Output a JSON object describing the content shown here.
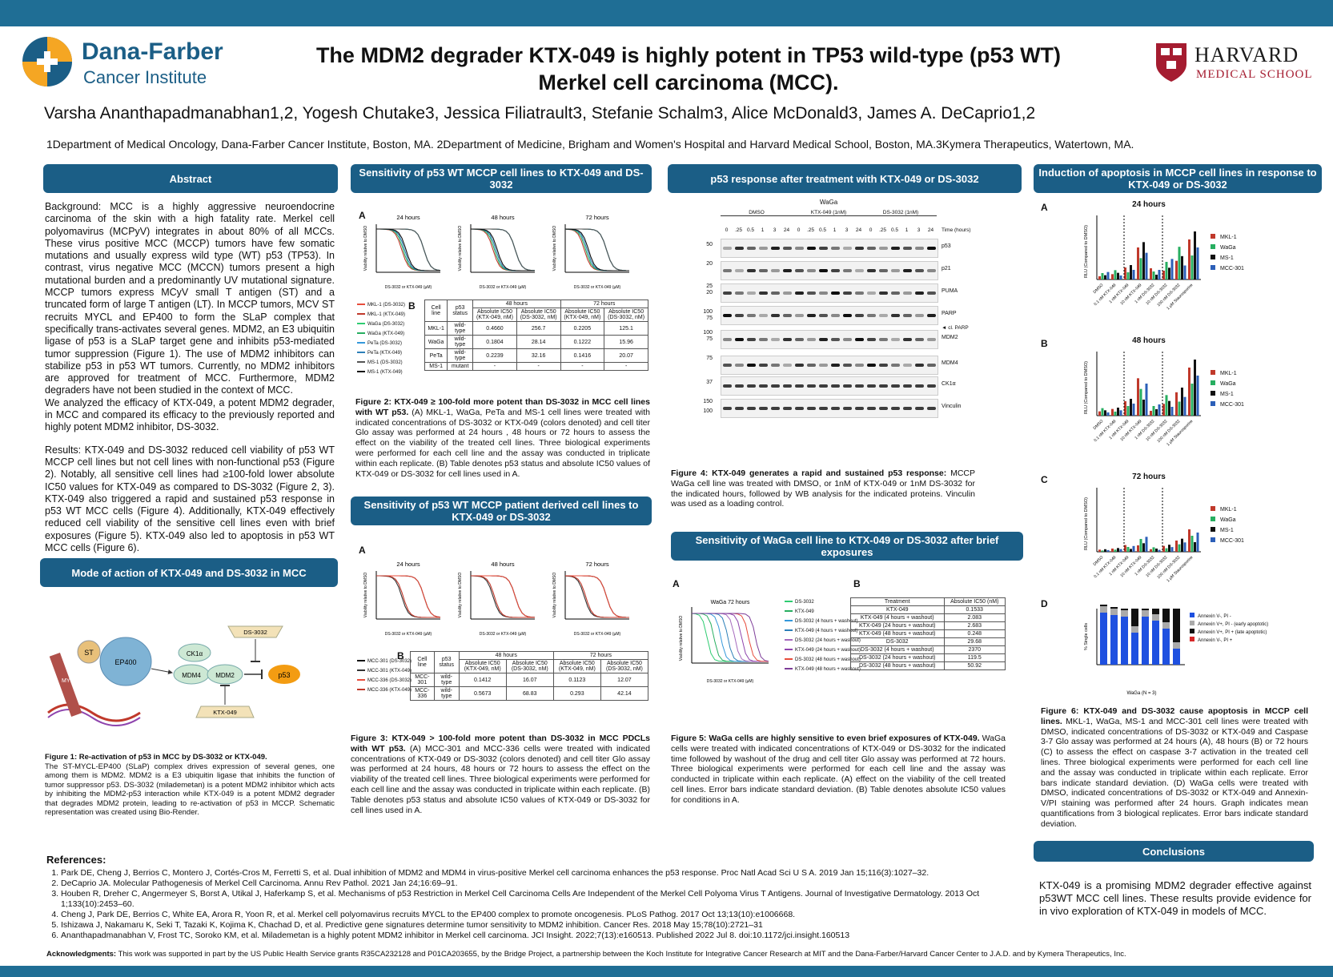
{
  "header": {
    "logo_left_line1": "Dana-Farber",
    "logo_left_line2": "Cancer Institute",
    "title_line1": "The MDM2 degrader KTX-049 is highly potent in TP53 wild-type (p53 WT)",
    "title_line2": "Merkel cell carcinoma (MCC).",
    "authors": "Varsha Ananthapadmanabhan1,2, Yogesh Chutake3, Jessica Filiatrault3, Stefanie Schalm3, Alice McDonald3, James A. DeCaprio1,2",
    "affiliations": "1Department of Medical Oncology, Dana-Farber Cancer Institute, Boston, MA. 2Department of Medicine, Brigham and Women's Hospital and Harvard Medical School, Boston, MA.3Kymera Therapeutics, Watertown, MA.",
    "logo_right_line1": "HARVARD",
    "logo_right_line2": "MEDICAL SCHOOL"
  },
  "abstract": {
    "heading": "Abstract",
    "p1": "Background: MCC is a highly aggressive neuroendocrine carcinoma of the skin with a high fatality rate. Merkel cell polyomavirus (MCPyV) integrates in about 80% of all MCCs. These virus positive MCC (MCCP) tumors have few somatic mutations and usually express wild type (WT) p53 (TP53). In contrast, virus negative MCC (MCCN) tumors present a high mutational burden and a predominantly UV mutational signature. MCCP tumors express MCyV small T antigen (ST) and a truncated form of large T antigen (LT). In MCCP tumors, MCV ST recruits MYCL and EP400 to form the SLaP complex that specifically trans-activates several genes. MDM2, an E3 ubiquitin ligase of p53 is a SLaP target gene and inhibits p53-mediated tumor suppression (Figure 1). The use of MDM2 inhibitors can stabilize p53 in p53 WT tumors. Currently, no MDM2 inhibitors are approved for treatment of MCC. Furthermore, MDM2 degraders have not been studied in the context of MCC.",
    "p2": "We analyzed the efficacy of KTX-049, a potent MDM2 degrader, in MCC and compared its efficacy to the previously reported and highly potent MDM2 inhibitor, DS-3032.",
    "p3": "Results: KTX-049 and DS-3032 reduced cell viability of p53 WT MCCP cell lines but not cell lines with non-functional p53 (Figure 2). Notably, all sensitive cell lines had ≥100-fold lower absolute IC50 values for KTX-049 as compared to DS-3032 (Figure 2, 3). KTX-049 also triggered a rapid and sustained p53 response in p53 WT MCC cells (Figure 4). Additionally, KTX-049 effectively reduced cell viability of the sensitive cell lines even with brief exposures (Figure 5). KTX-049 also led to apoptosis in p53 WT MCC cells (Figure 6)."
  },
  "moa": {
    "heading": "Mode of action of KTX-049 and DS-3032 in MCC",
    "nodes": {
      "st": "ST",
      "ep400": "EP400",
      "mycl": "MYCL",
      "ck1a": "CK1α",
      "mdm4": "MDM4",
      "mdm2": "MDM2",
      "p53": "p53",
      "ds": "DS-3032",
      "ktx": "KTX-049"
    },
    "caption_title": "Figure 1: Re-activation of p53 in MCC by DS-3032 or KTX-049.",
    "caption": "The ST-MYCL-EP400 (SLaP) complex drives expression of several genes, one among them is MDM2. MDM2 is a E3 ubiquitin ligase that inhibits the function of tumor suppressor p53. DS-3032 (milademetan) is a potent MDM2 inhibitor which acts by inhibiting the MDM2-p53 interaction while KTX-049 is a potent MDM2 degrader that degrades MDM2 protein, leading to re-activation of p53 in MCCP. Schematic representation was created using Bio-Render."
  },
  "fig2": {
    "heading": "Sensitivity of p53 WT MCCP cell lines to KTX-049 and DS-3032",
    "panel_a": "A",
    "panel_b": "B",
    "plot_titles": [
      "24 hours",
      "48 hours",
      "72 hours"
    ],
    "ylabel": "Viability relative to DMSO",
    "xlabel": "DS-3032 or KTX-049 (µM)",
    "legend": [
      "MKL-1 (DS-3032)",
      "MKL-1 (KTX-049)",
      "WaGa (DS-3032)",
      "WaGa (KTX-049)",
      "PeTa (DS-3032)",
      "PeTa (KTX-049)",
      "MS-1 (DS-3032)",
      "MS-1 (KTX-049)"
    ],
    "table_head": [
      "Cell line",
      "p53 status",
      "48 hours",
      "72 hours"
    ],
    "table_sub": [
      "Absolute IC50 (KTX-049, nM)",
      "Absolute IC50 (DS-3032, nM)",
      "Absolute IC50 (KTX-049, nM)",
      "Absolute IC50 (DS-3032, nM)"
    ],
    "rows": [
      [
        "MKL-1",
        "wild-type",
        "0.4660",
        "256.7",
        "0.2205",
        "125.1"
      ],
      [
        "WaGa",
        "wild-type",
        "0.1804",
        "28.14",
        "0.1222",
        "15.96"
      ],
      [
        "PeTa",
        "wild-type",
        "0.2239",
        "32.16",
        "0.1416",
        "20.07"
      ],
      [
        "MS-1",
        "mutant",
        "-",
        "-",
        "-",
        "-"
      ]
    ],
    "caption_title": "Figure 2: KTX-049 ≥ 100-fold more potent than DS-3032 in MCC cell lines with WT p53.",
    "caption": "(A) MKL-1, WaGa, PeTa and MS-1 cell lines were treated with indicated concentrations of DS-3032 or KTX-049 (colors denoted) and cell titer Glo assay was performed at 24 hours , 48 hours or 72 hours to assess the effect on the viability of the treated cell lines. Three biological experiments were performed for each cell line and the assay was conducted in triplicate within each replicate. (B) Table denotes p53 status and absolute IC50 values of KTX-049 or DS-3032 for cell lines used in A."
  },
  "fig3": {
    "heading": "Sensitivity of p53 WT MCCP patient derived cell lines to KTX-049 or DS-3032",
    "panel_a": "A",
    "panel_b": "B",
    "plot_titles": [
      "24 hours",
      "48 hours",
      "72 hours"
    ],
    "legend": [
      "MCC-301 (DS-3032)",
      "MCC-301 (KTX-049)",
      "MCC-336 (DS-3032)",
      "MCC-336 (KTX-049)"
    ],
    "table_head": [
      "Cell line",
      "p53 status",
      "48 hours",
      "72 hours"
    ],
    "table_sub": [
      "Absolute IC50 (KTX-049, nM)",
      "Absolute IC50 (DS-3032, nM)",
      "Absolute IC50 (KTX-049, nM)",
      "Absolute IC50 (DS-3032, nM)"
    ],
    "rows": [
      [
        "MCC-301",
        "wild-type",
        "0.1412",
        "16.07",
        "0.1123",
        "12.07"
      ],
      [
        "MCC-336",
        "wild-type",
        "0.5673",
        "68.83",
        "0.293",
        "42.14"
      ]
    ],
    "caption_title": "Figure 3: KTX-049 > 100-fold more potent than DS-3032 in MCC PDCLs with WT p53.",
    "caption": "(A) MCC-301 and MCC-336 cells were treated with indicated concentrations of KTX-049 or DS-3032 (colors denoted) and cell titer Glo assay was performed at 24 hours, 48 hours or 72 hours to assess the effect on the viability of the treated cell lines. Three biological experiments were performed for each cell line and the assay was conducted in triplicate within each replicate. (B) Table denotes p53 status and absolute IC50 values of KTX-049 or DS-3032 for cell lines used in A."
  },
  "fig4": {
    "heading": "p53 response after treatment with KTX-049 or DS-3032",
    "cell": "WaGa",
    "groups": [
      "DMSO",
      "KTX-049 (1nM)",
      "DS-3032 (1nM)"
    ],
    "time_label": "Time (hours)",
    "times": [
      "0",
      ".25",
      "0.5",
      "1",
      "3",
      "24",
      "0",
      ".25",
      "0.5",
      "1",
      "3",
      "24",
      "0",
      ".25",
      "0.5",
      "1",
      "3",
      "24"
    ],
    "proteins": [
      "p53",
      "p21",
      "PUMA",
      "PARP",
      "MDM2",
      "MDM4",
      "CK1α",
      "Vinculin"
    ],
    "cl_parp": "◄ cl. PARP",
    "markers": [
      "50",
      "20",
      "25",
      "20",
      "100",
      "75",
      "100",
      "75",
      "75",
      "37",
      "150",
      "100"
    ],
    "caption_title": "Figure 4: KTX-049 generates a rapid and sustained p53 response:",
    "caption": "MCCP WaGa cell line was treated with DMSO, or 1nM of KTX-049 or 1nM DS-3032 for the indicated hours, followed by WB analysis for the indicated proteins. Vinculin was used as a loading control."
  },
  "fig5": {
    "heading": "Sensitivity of WaGa cell line to KTX-049 or DS-3032 after brief exposures",
    "panel_a": "A",
    "panel_b": "B",
    "plot_title": "WaGa 72 hours",
    "legend": [
      "DS-3032",
      "KTX-049",
      "DS-3032 (4 hours + washout)",
      "KTX-049 (4 hours + washout)",
      "DS-3032 (24 hours + washout)",
      "KTX-049 (24 hours + washout)",
      "DS-3032 (48 hours + washout)",
      "KTX-049 (48 hours + washout)"
    ],
    "table_head": [
      "Treatment",
      "Absolute IC50 (nM)"
    ],
    "rows": [
      [
        "KTX-049",
        "0.1533"
      ],
      [
        "KTX-049 (4 hours + washout)",
        "2.083"
      ],
      [
        "KTX-049 (24 hours + washout)",
        "2.683"
      ],
      [
        "KTX-049 (48 hours + washout)",
        "0.248"
      ],
      [
        "DS-3032",
        "29.68"
      ],
      [
        "DS-3032 (4 hours + washout)",
        "2370"
      ],
      [
        "DS-3032 (24 hours + washout)",
        "119.5"
      ],
      [
        "DS-3032 (48 hours + washout)",
        "50.92"
      ]
    ],
    "caption_title": "Figure 5: WaGa cells are highly sensitive to even brief exposures of KTX-049.",
    "caption": "WaGa cells were treated with indicated concentrations of KTX-049 or DS-3032 for the indicated time followed by washout of the drug and cell titer Glo assay was performed at 72 hours. Three biological experiments were performed for each cell line and the assay was conducted in triplicate within each replicate. (A) effect on the viability of the cell treated cell lines. Error bars indicate standard deviation. (B) Table denotes absolute IC50 values for conditions in A."
  },
  "fig6": {
    "heading": "Induction of apoptosis in MCCP cell lines in response to KTX-049 or DS-3032",
    "panels": [
      "A",
      "B",
      "C",
      "D"
    ],
    "titles": [
      "24 hours",
      "48 hours",
      "72 hours"
    ],
    "ylabel": "RLU (Compared to DMSO)",
    "legend": [
      "MKL-1",
      "WaGa",
      "MS-1",
      "MCC-301"
    ],
    "xcats": [
      "DMSO",
      "0.1 nM KTX-049",
      "1 nM KTX-049",
      "10 nM KTX-049",
      "1 nM DS-3032",
      "10 nM DS-3032",
      "100 nM DS-3032",
      "1 µM Staurosporine"
    ],
    "d_ylabel": "% Single cells",
    "d_xlabel": "WaGa (N = 3)",
    "d_legend": [
      "Annexin V-, PI -",
      "Annexin V+, PI - (early apoptotic)",
      "Annexin V+, PI + (late apoptotic)",
      "Annexin V-, PI +"
    ],
    "caption_title": "Figure 6: KTX-049 and DS-3032 cause apoptosis in MCCP cell lines.",
    "caption": "MKL-1, WaGa, MS-1 and MCC-301 cell lines were treated with DMSO, indicated concentrations of DS-3032 or KTX-049 and Caspase 3-7 Glo assay was performed at 24 hours (A), 48 hours (B) or 72 hours (C) to assess the effect on caspase 3-7 activation in the treated cell lines. Three biological experiments were performed for each cell line and the assay was conducted in triplicate within each replicate. Error bars indicate standard deviation. (D) WaGa cells were treated with DMSO, indicated concentrations of DS-3032 or KTX-049 and Annexin-V/PI staining was performed after 24 hours. Graph indicates mean quantifications from 3 biological replicates. Error bars indicate standard deviation."
  },
  "conclusions": {
    "heading": "Conclusions",
    "text": "KTX-049 is a promising MDM2 degrader effective against p53WT MCC cell lines. These results provide evidence for in vivo exploration of KTX-049 in models of MCC."
  },
  "references": {
    "heading": "References:",
    "items": [
      "Park DE, Cheng J, Berrios C, Montero J, Cortés-Cros M, Ferretti S, et al. Dual inhibition of MDM2 and MDM4 in virus-positive Merkel cell carcinoma enhances the p53 response. Proc Natl Acad Sci U S A. 2019 Jan 15;116(3):1027–32.",
      "DeCaprio JA. Molecular Pathogenesis of Merkel Cell Carcinoma. Annu Rev Pathol. 2021 Jan 24;16:69–91.",
      "Houben R, Dreher C, Angermeyer S, Borst A, Utikal J, Haferkamp S, et al. Mechanisms of p53 Restriction in Merkel Cell Carcinoma Cells Are Independent of the Merkel Cell Polyoma Virus T Antigens. Journal of Investigative Dermatology. 2013 Oct 1;133(10):2453–60.",
      "Cheng J, Park DE, Berrios C, White EA, Arora R, Yoon R, et al. Merkel cell polyomavirus recruits MYCL to the EP400 complex to promote oncogenesis. PLoS Pathog. 2017 Oct 13;13(10):e1006668.",
      "Ishizawa J, Nakamaru K, Seki T, Tazaki K, Kojima K, Chachad D, et al. Predictive gene signatures determine tumor sensitivity to MDM2 inhibition. Cancer Res. 2018 May 15;78(10):2721–31",
      "Ananthapadmanabhan V, Frost TC, Soroko KM, et al. Milademetan is a highly potent MDM2 inhibitor in Merkel cell carcinoma. JCI Insight. 2022;7(13):e160513. Published 2022 Jul 8. doi:10.1172/jci.insight.160513"
    ]
  },
  "ack": {
    "label": "Acknowledgments:",
    "text": "This work was supported in part by the US Public Health Service grants R35CA232128 and P01CA203655, by the Bridge Project, a partnership between the Koch Institute for Integrative Cancer Research at MIT and the Dana-Farber/Harvard Cancer Center to J.A.D. and by Kymera Therapeutics, Inc."
  },
  "colors": {
    "header_blue": "#1b5e86",
    "bar_blue": "#1f6e95",
    "dfci_orange": "#f5a623",
    "harvard_crimson": "#a51c30"
  }
}
